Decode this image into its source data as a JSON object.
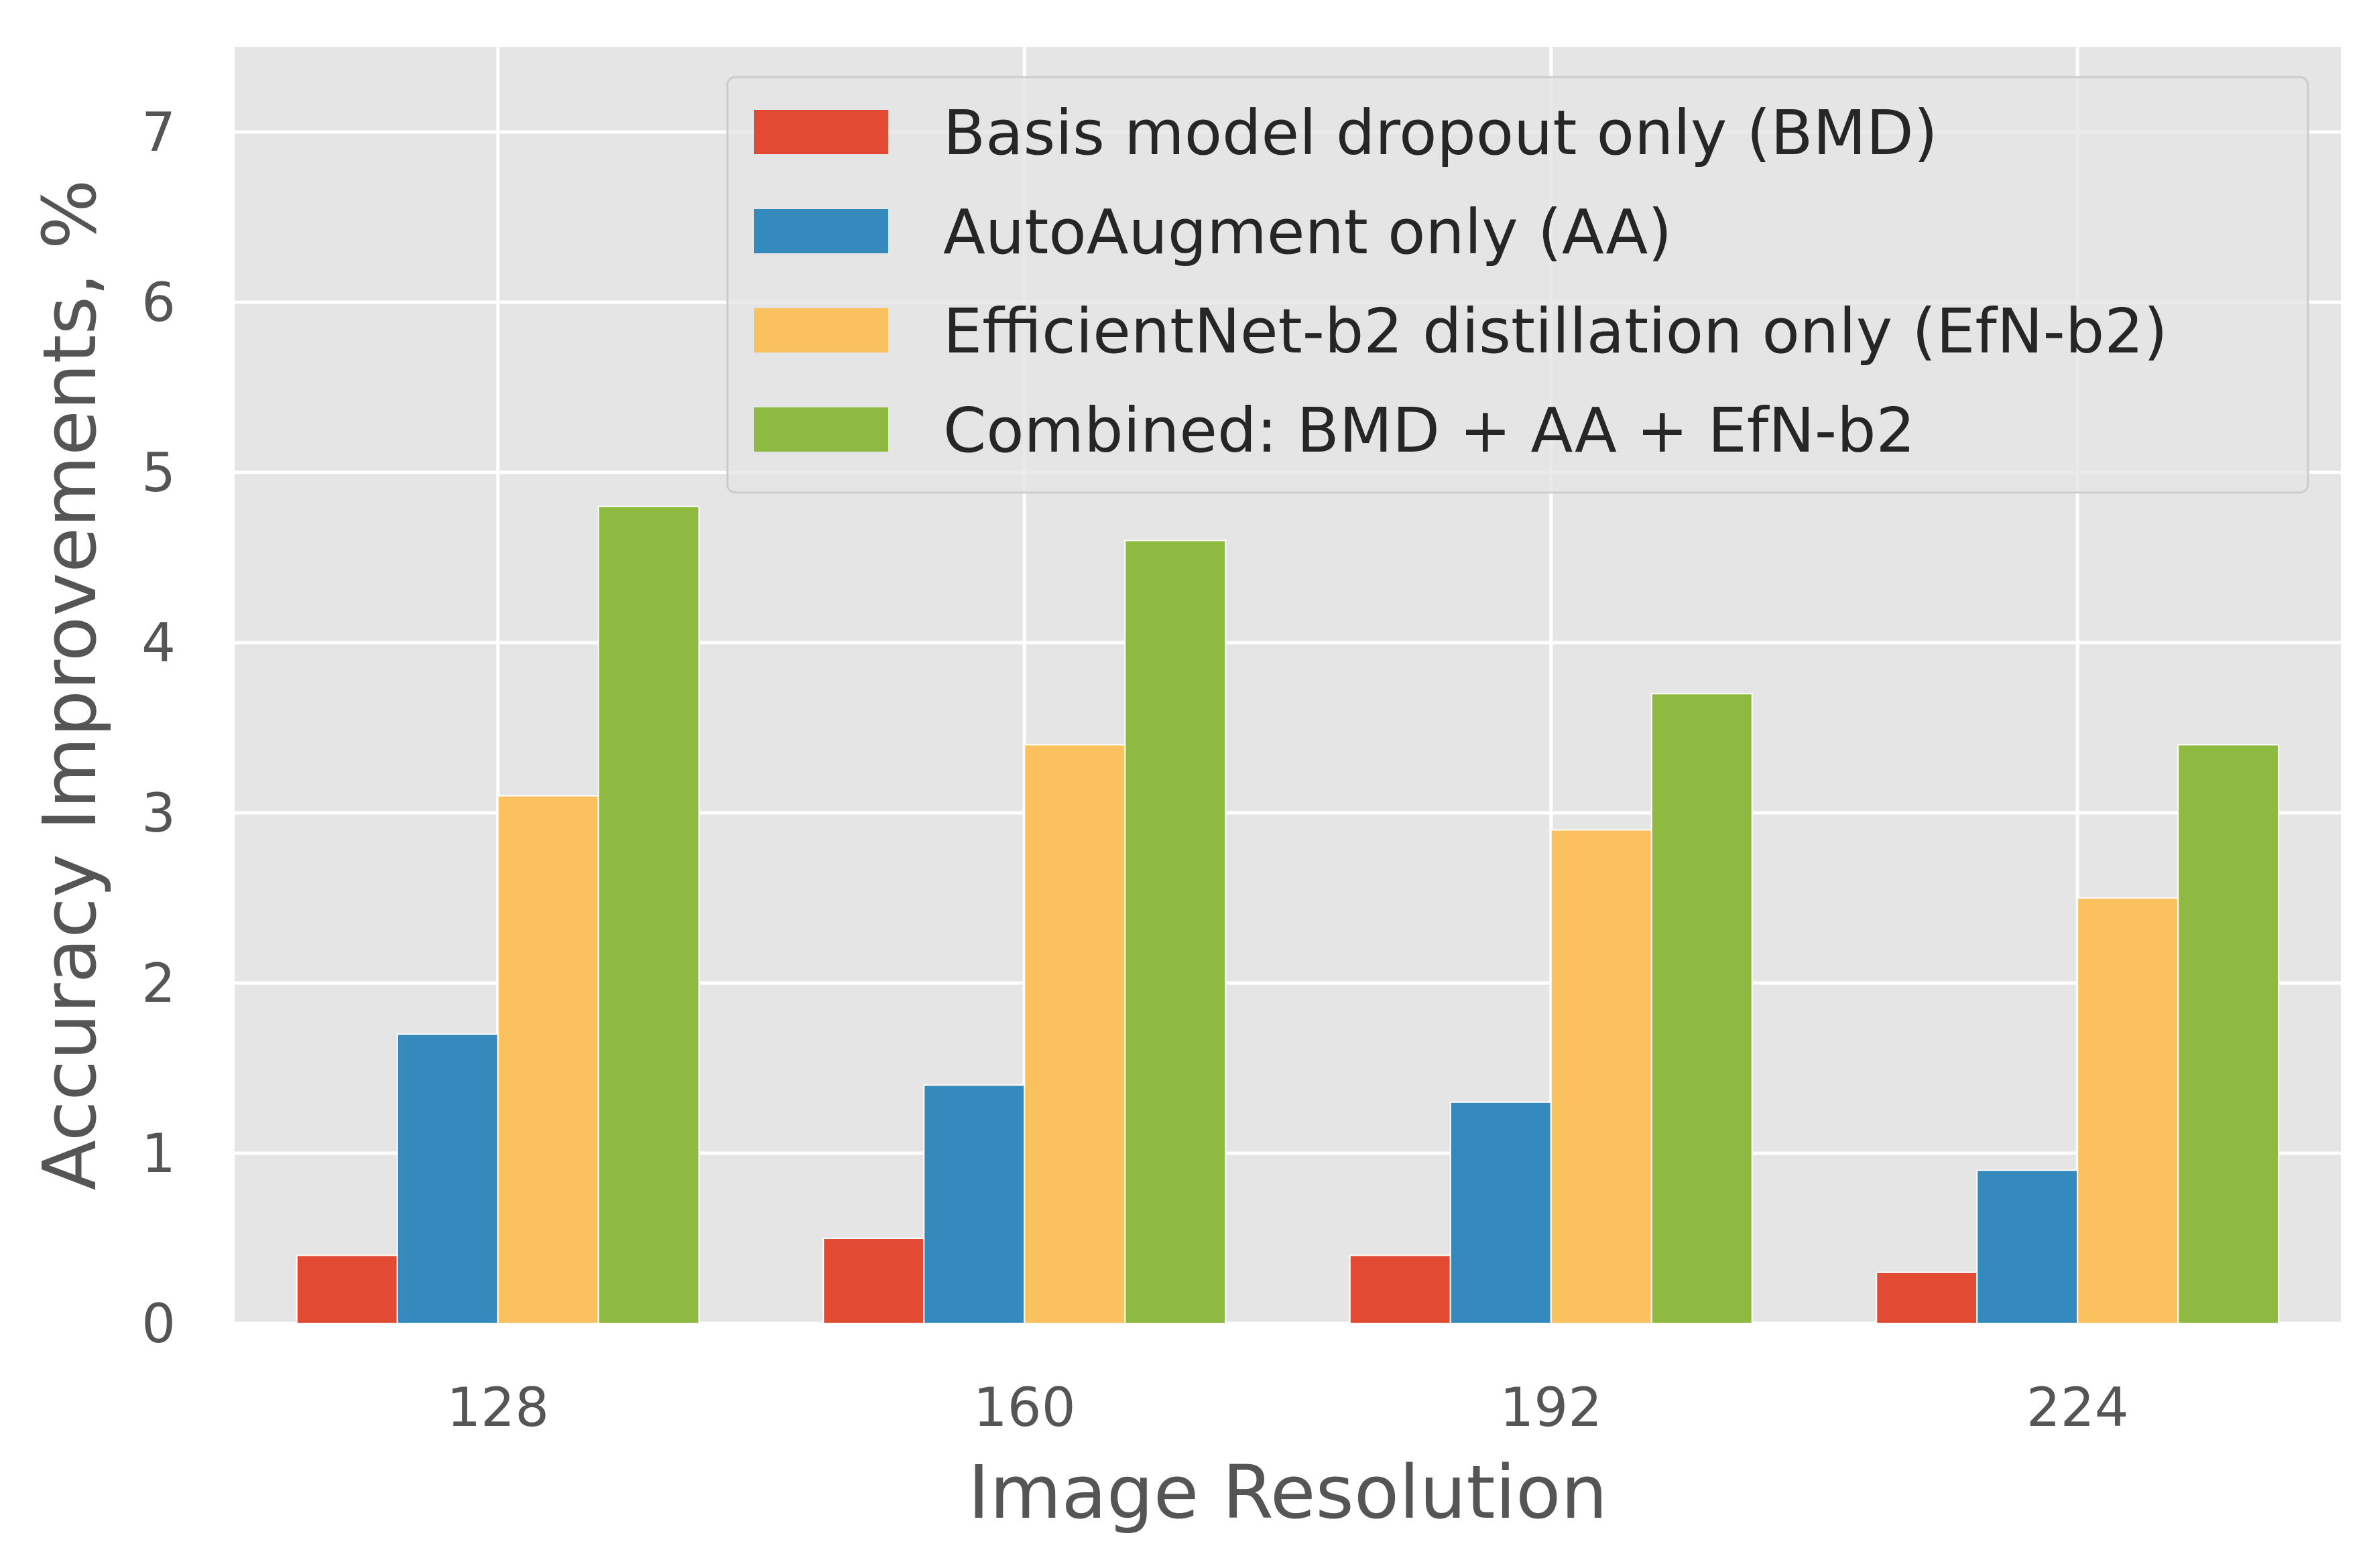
{
  "chart_data": {
    "type": "bar",
    "xlabel": "Image Resolution",
    "ylabel": "Accuracy Improvements, %",
    "categories": [
      "128",
      "160",
      "192",
      "224"
    ],
    "ylim": [
      0,
      7.5
    ],
    "yticks": [
      0,
      1,
      2,
      3,
      4,
      5,
      6,
      7
    ],
    "grid": true,
    "legend_position": "top-right",
    "series": [
      {
        "name": "Basis model dropout only (BMD)",
        "color": "#E24A33",
        "values": [
          0.4,
          0.5,
          0.4,
          0.3
        ]
      },
      {
        "name": "AutoAugment only (AA)",
        "color": "#348ABD",
        "values": [
          1.7,
          1.4,
          1.3,
          0.9
        ]
      },
      {
        "name": "EfficientNet-b2 distillation only (EfN-b2)",
        "color": "#FBC15E",
        "values": [
          3.1,
          3.4,
          2.9,
          2.5
        ]
      },
      {
        "name": "Combined: BMD + AA + EfN-b2",
        "color": "#8EBA42",
        "values": [
          4.8,
          4.6,
          3.7,
          3.4
        ]
      }
    ]
  }
}
